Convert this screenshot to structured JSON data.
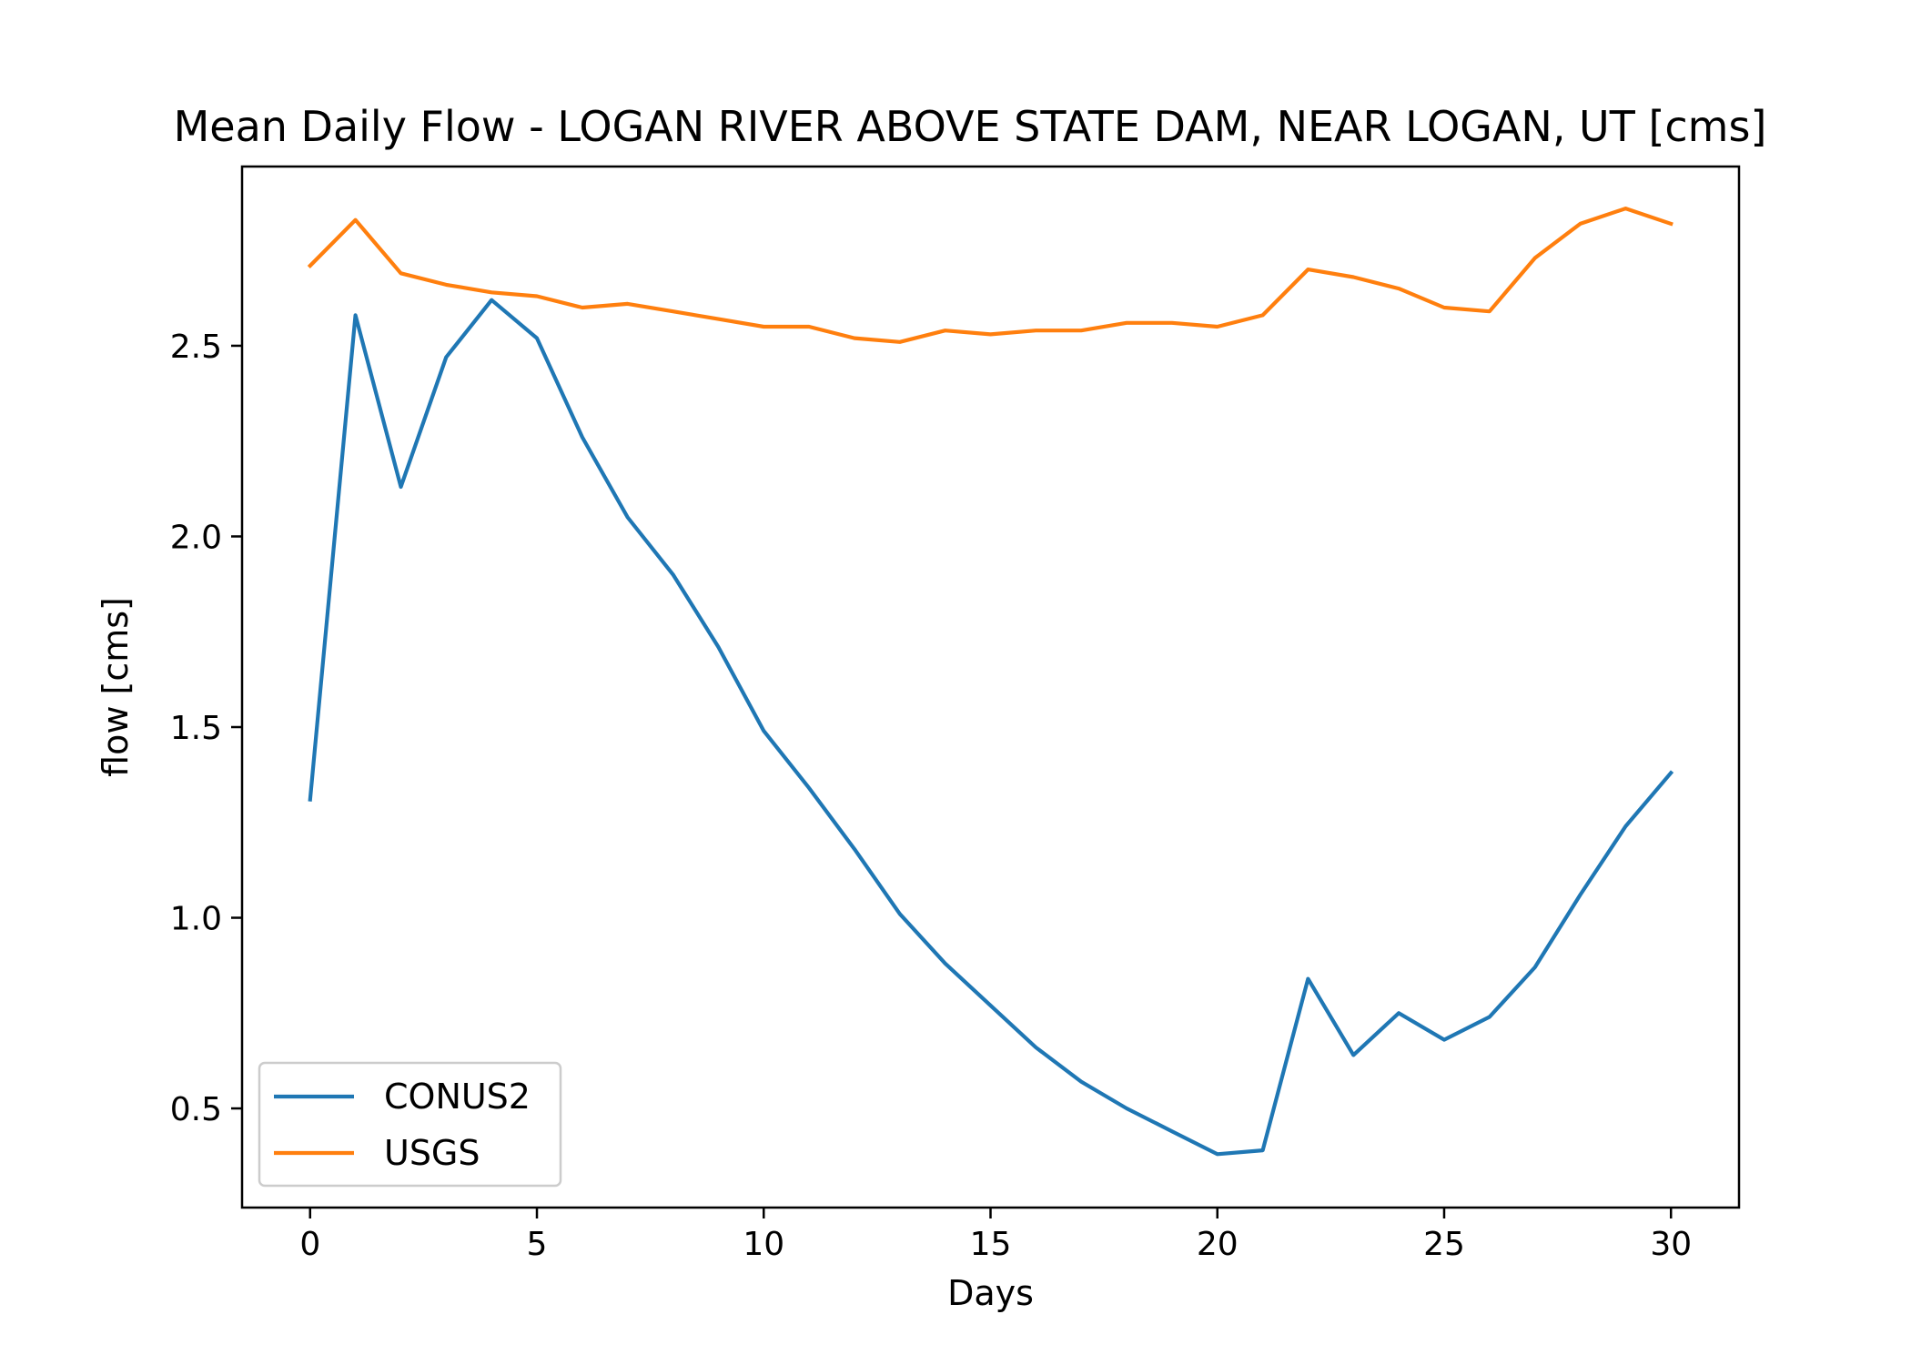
{
  "chart_data": {
    "type": "line",
    "title": "Mean Daily Flow - LOGAN RIVER ABOVE STATE DAM, NEAR LOGAN, UT [cms]",
    "xlabel": "Days",
    "ylabel": "flow [cms]",
    "xlim": [
      -1.5,
      31.5
    ],
    "ylim": [
      0.24,
      2.97
    ],
    "xticks": [
      0,
      5,
      10,
      15,
      20,
      25,
      30
    ],
    "xtick_labels": [
      "0",
      "5",
      "10",
      "15",
      "20",
      "25",
      "30"
    ],
    "yticks": [
      0.5,
      1.0,
      1.5,
      2.0,
      2.5
    ],
    "ytick_labels": [
      "0.5",
      "1.0",
      "1.5",
      "2.0",
      "2.5"
    ],
    "grid": false,
    "legend_position": "lower-left",
    "x": [
      0,
      1,
      2,
      3,
      4,
      5,
      6,
      7,
      8,
      9,
      10,
      11,
      12,
      13,
      14,
      15,
      16,
      17,
      18,
      19,
      20,
      21,
      22,
      23,
      24,
      25,
      26,
      27,
      28,
      29,
      30
    ],
    "series": [
      {
        "name": "CONUS2",
        "color": "#1f77b4",
        "values": [
          1.31,
          2.58,
          2.13,
          2.47,
          2.62,
          2.52,
          2.26,
          2.05,
          1.9,
          1.71,
          1.49,
          1.34,
          1.18,
          1.01,
          0.88,
          0.77,
          0.66,
          0.57,
          0.5,
          0.44,
          0.38,
          0.39,
          0.84,
          0.64,
          0.75,
          0.68,
          0.74,
          0.87,
          1.06,
          1.24,
          1.38
        ]
      },
      {
        "name": "USGS",
        "color": "#ff7f0e",
        "values": [
          2.71,
          2.83,
          2.69,
          2.66,
          2.64,
          2.63,
          2.6,
          2.61,
          2.59,
          2.57,
          2.55,
          2.55,
          2.52,
          2.51,
          2.54,
          2.53,
          2.54,
          2.54,
          2.56,
          2.56,
          2.55,
          2.58,
          2.7,
          2.68,
          2.65,
          2.6,
          2.59,
          2.73,
          2.82,
          2.86,
          2.82
        ]
      }
    ]
  }
}
